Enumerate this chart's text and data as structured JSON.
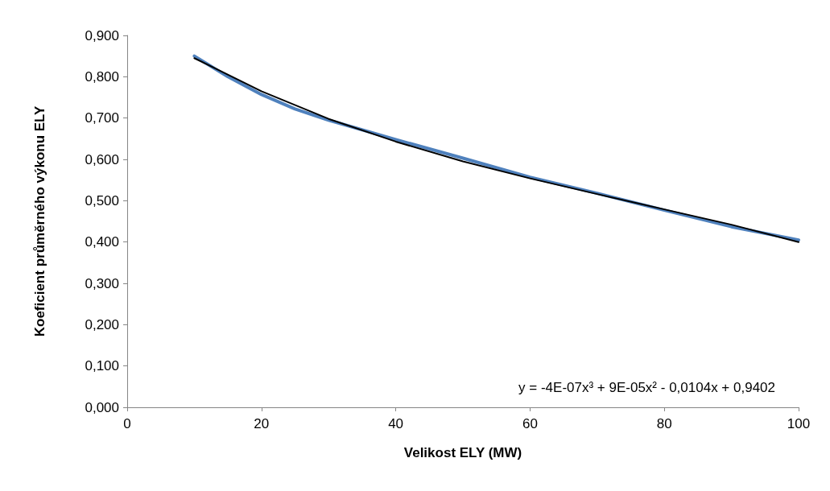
{
  "chart_data": {
    "type": "line",
    "xlabel": "Velikost ELY (MW)",
    "ylabel": "Koeficient průměrného výkonu ELY",
    "xlim": [
      0,
      100
    ],
    "xticks": [
      0,
      20,
      40,
      60,
      80,
      100
    ],
    "ylim": [
      0,
      0.9
    ],
    "yticks": [
      {
        "value": 0,
        "label": "0,000"
      },
      {
        "value": 0.1,
        "label": "0,100"
      },
      {
        "value": 0.2,
        "label": "0,200"
      },
      {
        "value": 0.3,
        "label": "0,300"
      },
      {
        "value": 0.4,
        "label": "0,400"
      },
      {
        "value": 0.5,
        "label": "0,500"
      },
      {
        "value": 0.6,
        "label": "0,600"
      },
      {
        "value": 0.7,
        "label": "0,700"
      },
      {
        "value": 0.8,
        "label": "0,800"
      },
      {
        "value": 0.9,
        "label": "0,900"
      }
    ],
    "grid": false,
    "marker": "none",
    "line_style": "solid",
    "series": [
      {
        "color": "#4f81bd",
        "x": [
          10,
          15,
          20,
          25,
          30,
          40,
          50,
          60,
          70,
          80,
          90,
          100
        ],
        "values": [
          0.85,
          0.8,
          0.757,
          0.722,
          0.695,
          0.648,
          0.603,
          0.557,
          0.518,
          0.477,
          0.437,
          0.405
        ]
      },
      {
        "type": "line",
        "color": "#000000",
        "x": [
          10,
          20,
          30,
          40,
          50,
          60,
          70,
          80,
          90,
          100
        ],
        "values": [
          0.845,
          0.765,
          0.698,
          0.643,
          0.595,
          0.554,
          0.516,
          0.479,
          0.442,
          0.4
        ]
      }
    ],
    "annotations": [
      "y = -4E-07x³ + 9E-05x² - 0,0104x + 0,9402"
    ]
  }
}
